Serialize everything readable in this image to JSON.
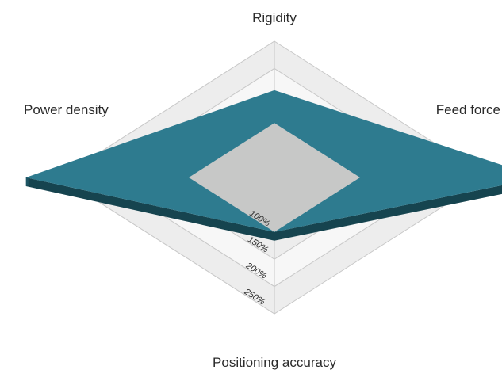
{
  "chart_data": {
    "type": "radar",
    "axes": [
      "Rigidity",
      "Feed force",
      "Positioning accuracy",
      "Power density"
    ],
    "ticks": [
      100,
      150,
      200,
      250
    ],
    "tick_labels": [
      "100%",
      "150%",
      "200%",
      "250%"
    ],
    "rmax": 250,
    "baseline": {
      "values": [
        100,
        100,
        100,
        100
      ]
    },
    "series": [
      {
        "values": [
          160,
          310,
          100,
          290
        ]
      }
    ],
    "colors": {
      "series_top": "#2e7b8f",
      "series_side": "#16444f",
      "series_edge": "#1d5563",
      "baseline": "#c7c8c7",
      "ring_fill_outer": "#ededed",
      "ring_fill_inner": "#f7f7f7",
      "ring_stroke": "#c8c8c8"
    }
  }
}
